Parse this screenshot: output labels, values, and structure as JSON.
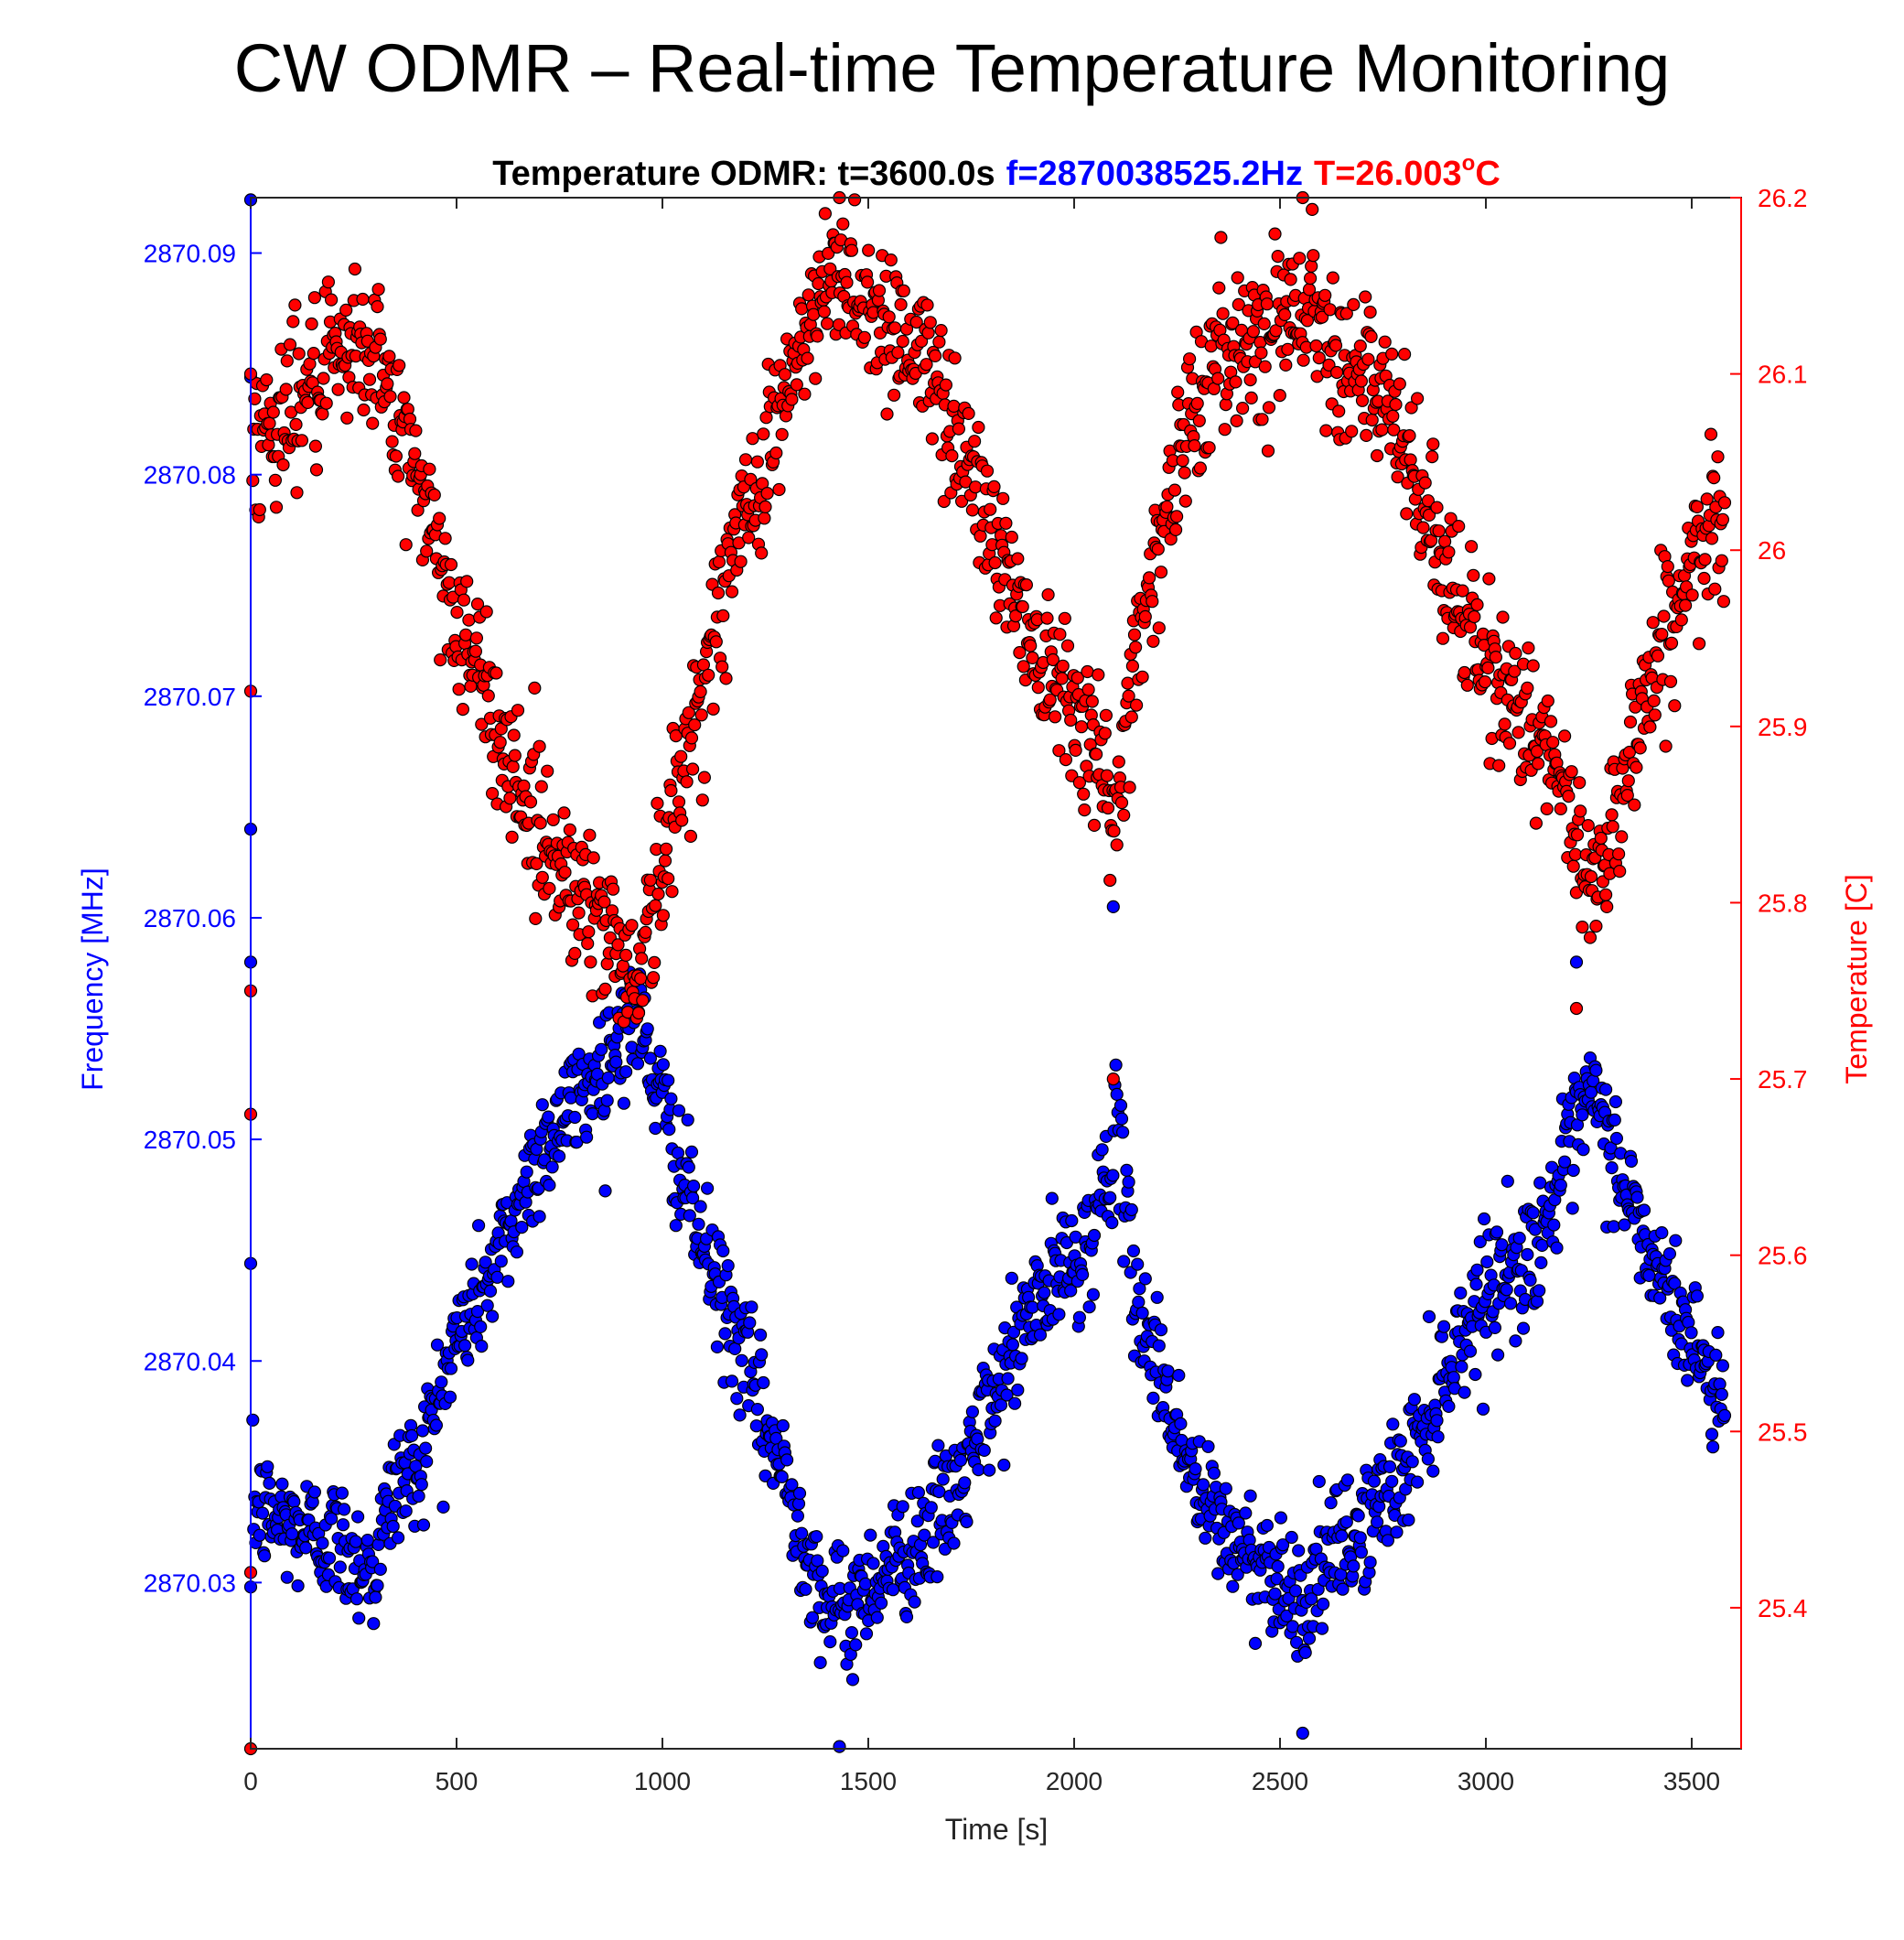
{
  "page": {
    "title": "CW ODMR – Real-time Temperature Monitoring"
  },
  "chart_data": {
    "type": "scatter",
    "title": {
      "prefix": "Temperature ODMR: t=3600.0s",
      "frequency": "f=2870038525.2Hz",
      "temperature_main": "T=26.003",
      "temperature_sup": "o",
      "temperature_unit": "C"
    },
    "xlabel": "Time [s]",
    "ylabel_left": "Frequency [MHz]",
    "ylabel_right": "Temperature [C]",
    "xlim": [
      0,
      3620
    ],
    "ylim_left": [
      2870.0225,
      2870.0925
    ],
    "ylim_right": [
      25.32,
      26.2
    ],
    "xticks": [
      0,
      500,
      1000,
      1500,
      2000,
      2500,
      3000,
      3500
    ],
    "xtick_labels": [
      "0",
      "500",
      "1000",
      "1500",
      "2000",
      "2500",
      "3000",
      "3500"
    ],
    "yticks_left": [
      2870.03,
      2870.04,
      2870.05,
      2870.06,
      2870.07,
      2870.08,
      2870.09
    ],
    "ytick_labels_left": [
      "2870.03",
      "2870.04",
      "2870.05",
      "2870.06",
      "2870.07",
      "2870.08",
      "2870.09"
    ],
    "yticks_right": [
      25.4,
      25.5,
      25.6,
      25.7,
      25.8,
      25.9,
      26,
      26.1,
      26.2
    ],
    "ytick_labels_right": [
      "25.4",
      "25.5",
      "25.6",
      "25.7",
      "25.8",
      "25.9",
      "26",
      "26.1",
      "26.2"
    ],
    "grid": false,
    "colors": {
      "frequency": "#0000ff",
      "temperature": "#ff0000",
      "marker_edge": "#000000",
      "title_prefix": "#000000"
    },
    "series": [
      {
        "axis": "left",
        "color": "#0000ff",
        "trend": {
          "x": [
            0,
            100,
            200,
            300,
            350,
            400,
            500,
            600,
            700,
            800,
            860,
            900,
            940,
            1000,
            1100,
            1200,
            1300,
            1400,
            1450,
            1500,
            1600,
            1700,
            1800,
            1900,
            2000,
            2050,
            2100,
            2150,
            2200,
            2300,
            2400,
            2500,
            2550,
            2600,
            2700,
            2800,
            2900,
            3000,
            3100,
            3200,
            3250,
            3300,
            3400,
            3500,
            3580
          ],
          "y": [
            2870.0335,
            2870.0325,
            2870.032,
            2870.0305,
            2870.0345,
            2870.035,
            2870.041,
            2870.0445,
            2870.0495,
            2870.052,
            2870.0535,
            2870.055,
            2870.0555,
            2870.0515,
            2870.045,
            2870.04,
            2870.0345,
            2870.029,
            2870.0285,
            2870.03,
            2870.0315,
            2870.0335,
            2870.038,
            2870.0425,
            2870.0445,
            2870.046,
            2870.0505,
            2870.043,
            2870.04,
            2870.034,
            2870.0315,
            2870.0305,
            2870.029,
            2870.0305,
            2870.0325,
            2870.035,
            2870.0395,
            2870.0435,
            2870.0445,
            2870.049,
            2870.052,
            2870.05,
            2870.0445,
            2870.041,
            2870.038
          ]
        },
        "noise": 0.0014,
        "points": 1500,
        "outliers": [
          [
            0,
            2870.0924
          ],
          [
            0,
            2870.0844
          ],
          [
            0,
            2870.064
          ],
          [
            0,
            2870.058
          ],
          [
            0,
            2870.0444
          ],
          [
            0,
            2870.0298
          ],
          [
            1430,
            2870.0226
          ],
          [
            2555,
            2870.0232
          ],
          [
            2095,
            2870.0605
          ],
          [
            3220,
            2870.058
          ]
        ]
      },
      {
        "axis": "right",
        "color": "#ff0000",
        "trend": {
          "x": [
            0,
            100,
            200,
            300,
            350,
            400,
            500,
            600,
            700,
            800,
            860,
            900,
            940,
            1000,
            1100,
            1200,
            1300,
            1400,
            1450,
            1500,
            1600,
            1700,
            1800,
            1900,
            2000,
            2050,
            2100,
            2150,
            2200,
            2300,
            2400,
            2500,
            2550,
            2600,
            2700,
            2800,
            2900,
            3000,
            3100,
            3200,
            3250,
            3300,
            3400,
            3500,
            3580
          ],
          "y": [
            26.06,
            26.085,
            26.1,
            26.12,
            26.07,
            26.05,
            25.96,
            25.9,
            25.84,
            25.81,
            25.785,
            25.77,
            25.76,
            25.82,
            25.93,
            26.02,
            26.09,
            26.15,
            26.16,
            26.14,
            26.12,
            26.08,
            26.01,
            25.95,
            25.92,
            25.89,
            25.84,
            25.95,
            26.0,
            26.09,
            26.12,
            26.13,
            26.145,
            26.13,
            26.1,
            26.06,
            25.99,
            25.93,
            25.91,
            25.85,
            25.81,
            25.84,
            25.93,
            25.99,
            26.02
          ]
        },
        "noise": 0.022,
        "points": 1500,
        "outliers": [
          [
            0,
            26.1
          ],
          [
            0,
            25.92
          ],
          [
            0,
            25.75
          ],
          [
            0,
            25.68
          ],
          [
            0,
            25.42
          ],
          [
            0,
            25.32
          ],
          [
            1430,
            26.2
          ],
          [
            2555,
            26.2
          ],
          [
            2095,
            25.7
          ],
          [
            3220,
            25.74
          ]
        ]
      }
    ]
  }
}
